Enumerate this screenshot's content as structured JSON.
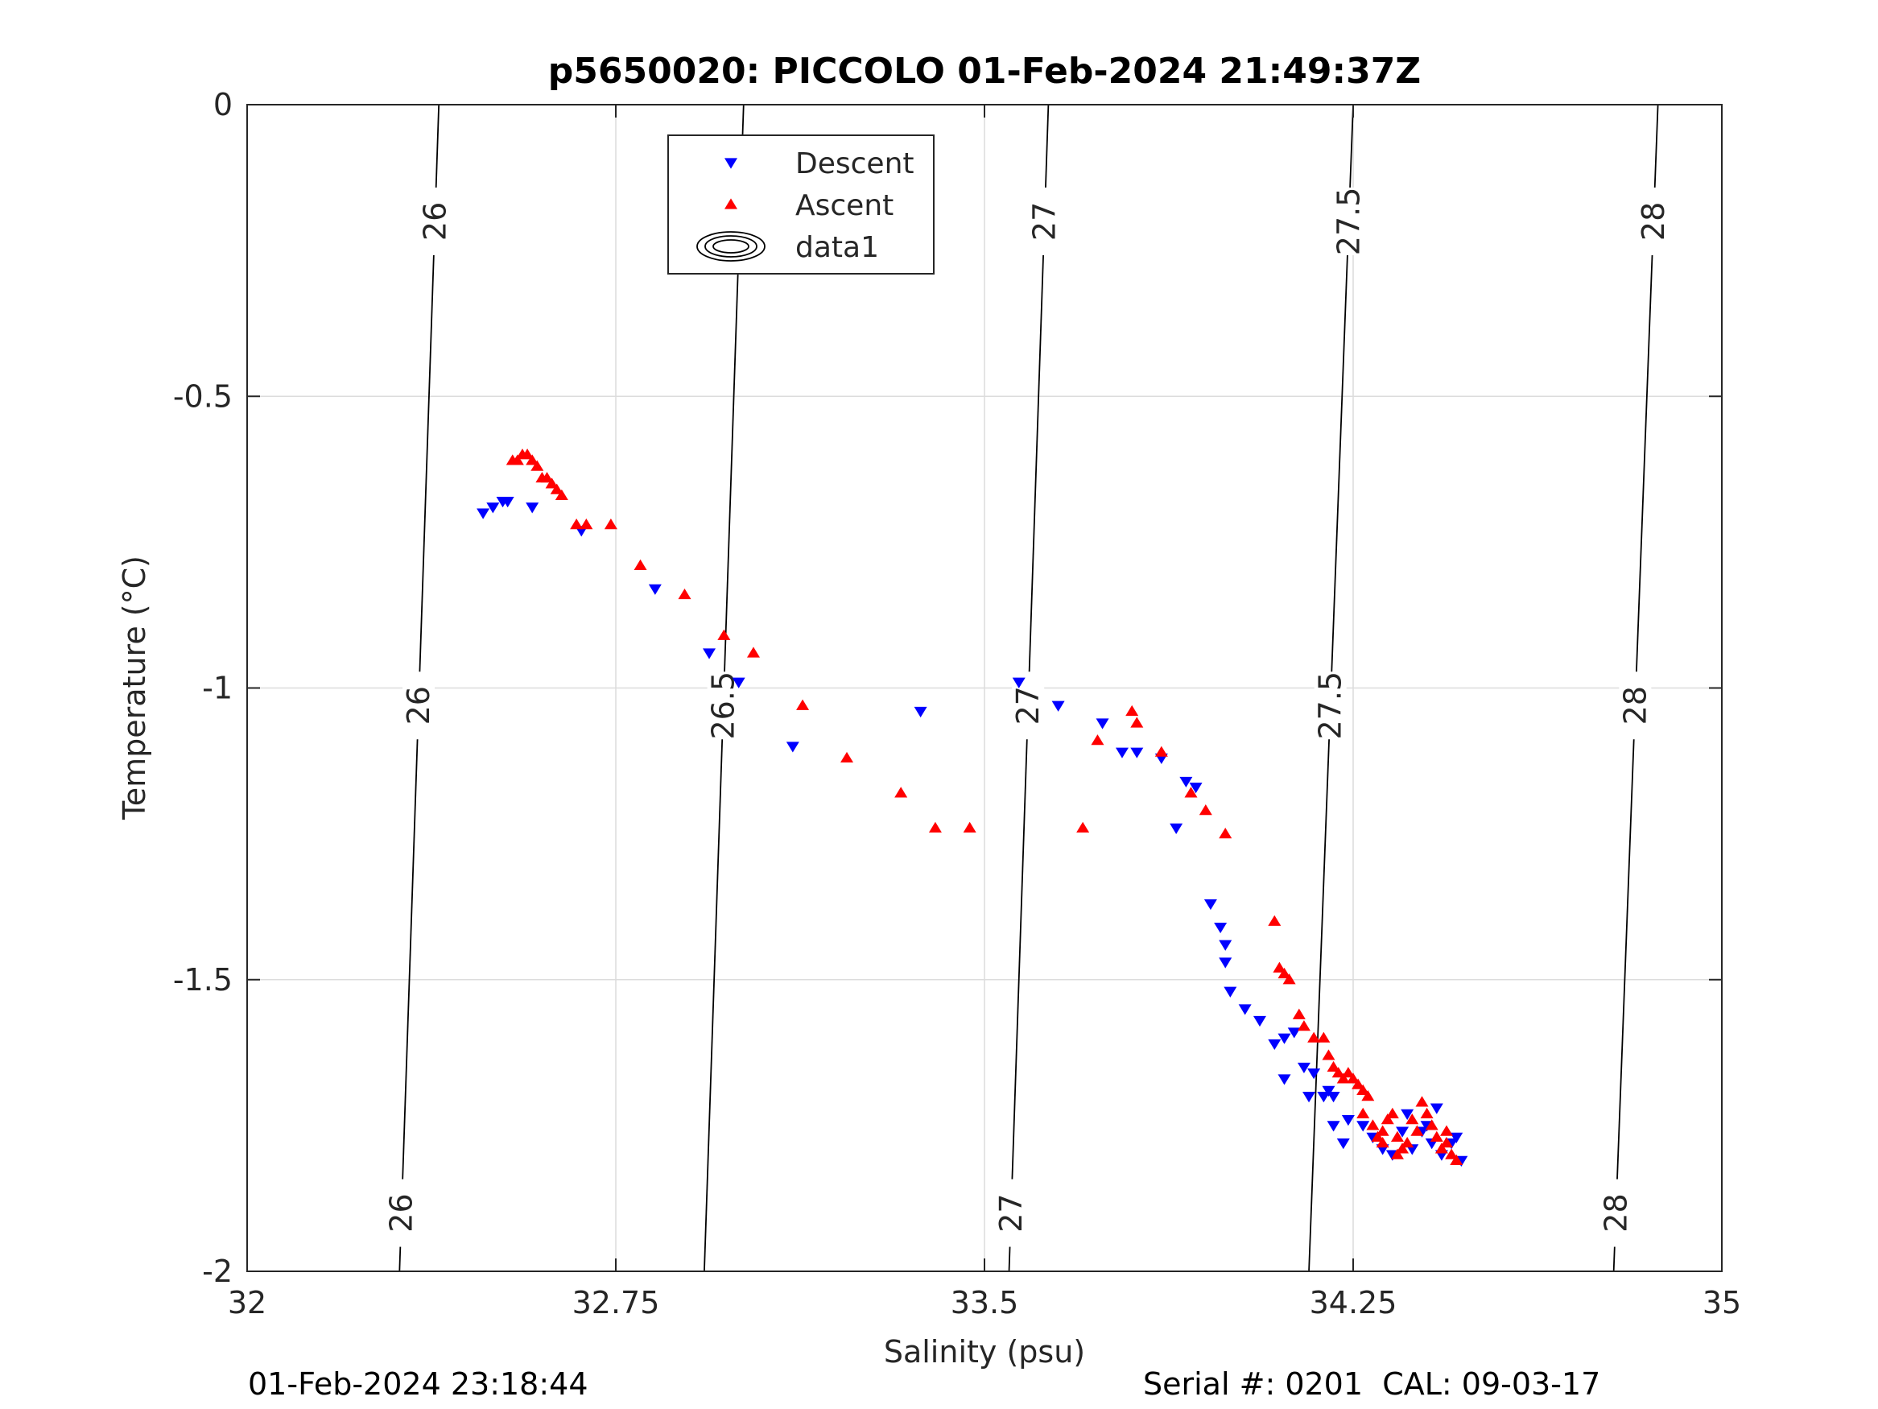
{
  "chart_data": {
    "type": "scatter",
    "title": "p5650020: PICCOLO 01-Feb-2024 21:49:37Z",
    "xlabel": "Salinity (psu)",
    "ylabel": "Temperature (°C)",
    "xlim": [
      32,
      35
    ],
    "ylim": [
      -2,
      0
    ],
    "xticks": [
      32,
      32.75,
      33.5,
      34.25,
      35
    ],
    "xtick_labels": [
      "32",
      "32.75",
      "33.5",
      "34.25",
      "35"
    ],
    "yticks": [
      0,
      -0.5,
      -1,
      -1.5,
      -2
    ],
    "ytick_labels": [
      "0",
      "-0.5",
      "-1",
      "-1.5",
      "-2"
    ],
    "grid": true,
    "legend_position": "top-center",
    "legend": [
      {
        "label": "Descent",
        "marker": "triangle-down",
        "color": "#0000ff"
      },
      {
        "label": "Ascent",
        "marker": "triangle-up",
        "color": "#ff0000"
      },
      {
        "label": "data1",
        "marker": "contour-ellipses",
        "color": "#000000"
      }
    ],
    "contours": [
      {
        "label": "26",
        "s_top": 32.39,
        "s_bottom": 32.31,
        "label_t": [
          -0.2,
          -1.03,
          -1.9
        ]
      },
      {
        "label": "26.5",
        "s_top": 33.01,
        "s_bottom": 32.93,
        "label_t": [
          -0.2,
          -1.03
        ]
      },
      {
        "label": "27",
        "s_top": 33.63,
        "s_bottom": 33.55,
        "label_t": [
          -0.2,
          -1.03,
          -1.9
        ]
      },
      {
        "label": "27.5",
        "s_top": 34.25,
        "s_bottom": 34.16,
        "label_t": [
          -0.2,
          -1.03
        ]
      },
      {
        "label": "28",
        "s_top": 34.87,
        "s_bottom": 34.78,
        "label_t": [
          -0.2,
          -1.03,
          -1.9
        ]
      }
    ],
    "series": [
      {
        "name": "Descent",
        "color": "#0000ff",
        "marker": "triangle-down",
        "points": [
          [
            32.48,
            -0.7
          ],
          [
            32.5,
            -0.69
          ],
          [
            32.52,
            -0.68
          ],
          [
            32.53,
            -0.68
          ],
          [
            32.58,
            -0.69
          ],
          [
            32.68,
            -0.73
          ],
          [
            32.83,
            -0.83
          ],
          [
            32.94,
            -0.94
          ],
          [
            33.0,
            -0.99
          ],
          [
            33.11,
            -1.1
          ],
          [
            33.37,
            -1.04
          ],
          [
            33.57,
            -0.99
          ],
          [
            33.65,
            -1.03
          ],
          [
            33.74,
            -1.06
          ],
          [
            33.78,
            -1.11
          ],
          [
            33.81,
            -1.11
          ],
          [
            33.86,
            -1.12
          ],
          [
            33.89,
            -1.24
          ],
          [
            33.91,
            -1.16
          ],
          [
            33.93,
            -1.17
          ],
          [
            33.96,
            -1.37
          ],
          [
            33.98,
            -1.41
          ],
          [
            33.99,
            -1.44
          ],
          [
            33.99,
            -1.47
          ],
          [
            34.0,
            -1.52
          ],
          [
            34.03,
            -1.55
          ],
          [
            34.06,
            -1.57
          ],
          [
            34.09,
            -1.61
          ],
          [
            34.11,
            -1.6
          ],
          [
            34.11,
            -1.67
          ],
          [
            34.13,
            -1.59
          ],
          [
            34.15,
            -1.65
          ],
          [
            34.16,
            -1.7
          ],
          [
            34.17,
            -1.66
          ],
          [
            34.19,
            -1.7
          ],
          [
            34.2,
            -1.69
          ],
          [
            34.21,
            -1.7
          ],
          [
            34.21,
            -1.75
          ],
          [
            34.23,
            -1.78
          ],
          [
            34.24,
            -1.74
          ],
          [
            34.27,
            -1.75
          ],
          [
            34.29,
            -1.77
          ],
          [
            34.31,
            -1.79
          ],
          [
            34.33,
            -1.8
          ],
          [
            34.35,
            -1.76
          ],
          [
            34.37,
            -1.79
          ],
          [
            34.39,
            -1.76
          ],
          [
            34.41,
            -1.78
          ],
          [
            34.42,
            -1.72
          ],
          [
            34.43,
            -1.8
          ],
          [
            34.45,
            -1.78
          ],
          [
            34.47,
            -1.81
          ],
          [
            34.46,
            -1.77
          ],
          [
            34.4,
            -1.75
          ],
          [
            34.36,
            -1.73
          ]
        ]
      },
      {
        "name": "Ascent",
        "color": "#ff0000",
        "marker": "triangle-up",
        "points": [
          [
            32.54,
            -0.61
          ],
          [
            32.55,
            -0.61
          ],
          [
            32.56,
            -0.6
          ],
          [
            32.57,
            -0.6
          ],
          [
            32.58,
            -0.61
          ],
          [
            32.59,
            -0.62
          ],
          [
            32.6,
            -0.64
          ],
          [
            32.61,
            -0.64
          ],
          [
            32.62,
            -0.65
          ],
          [
            32.63,
            -0.66
          ],
          [
            32.64,
            -0.67
          ],
          [
            32.67,
            -0.72
          ],
          [
            32.69,
            -0.72
          ],
          [
            32.74,
            -0.72
          ],
          [
            32.8,
            -0.79
          ],
          [
            32.89,
            -0.84
          ],
          [
            32.97,
            -0.91
          ],
          [
            33.03,
            -0.94
          ],
          [
            33.13,
            -1.03
          ],
          [
            33.22,
            -1.12
          ],
          [
            33.33,
            -1.18
          ],
          [
            33.4,
            -1.24
          ],
          [
            33.47,
            -1.24
          ],
          [
            33.7,
            -1.24
          ],
          [
            33.73,
            -1.09
          ],
          [
            33.8,
            -1.04
          ],
          [
            33.81,
            -1.06
          ],
          [
            33.86,
            -1.11
          ],
          [
            33.92,
            -1.18
          ],
          [
            33.95,
            -1.21
          ],
          [
            33.99,
            -1.25
          ],
          [
            34.09,
            -1.4
          ],
          [
            34.1,
            -1.48
          ],
          [
            34.11,
            -1.49
          ],
          [
            34.12,
            -1.5
          ],
          [
            34.14,
            -1.56
          ],
          [
            34.15,
            -1.58
          ],
          [
            34.17,
            -1.6
          ],
          [
            34.19,
            -1.6
          ],
          [
            34.2,
            -1.63
          ],
          [
            34.21,
            -1.65
          ],
          [
            34.22,
            -1.66
          ],
          [
            34.23,
            -1.67
          ],
          [
            34.24,
            -1.66
          ],
          [
            34.25,
            -1.67
          ],
          [
            34.26,
            -1.68
          ],
          [
            34.27,
            -1.69
          ],
          [
            34.28,
            -1.7
          ],
          [
            34.27,
            -1.73
          ],
          [
            34.29,
            -1.75
          ],
          [
            34.3,
            -1.77
          ],
          [
            34.31,
            -1.76
          ],
          [
            34.32,
            -1.74
          ],
          [
            34.33,
            -1.73
          ],
          [
            34.34,
            -1.77
          ],
          [
            34.35,
            -1.79
          ],
          [
            34.36,
            -1.78
          ],
          [
            34.38,
            -1.76
          ],
          [
            34.4,
            -1.73
          ],
          [
            34.41,
            -1.75
          ],
          [
            34.42,
            -1.77
          ],
          [
            34.43,
            -1.79
          ],
          [
            34.44,
            -1.78
          ],
          [
            34.45,
            -1.8
          ],
          [
            34.46,
            -1.81
          ],
          [
            34.44,
            -1.76
          ],
          [
            34.39,
            -1.71
          ],
          [
            34.37,
            -1.74
          ],
          [
            34.34,
            -1.8
          ],
          [
            34.31,
            -1.78
          ]
        ]
      }
    ]
  },
  "footer": {
    "timestamp": "01-Feb-2024 23:18:44",
    "serial": "Serial #: 0201  CAL: 09-03-17"
  }
}
